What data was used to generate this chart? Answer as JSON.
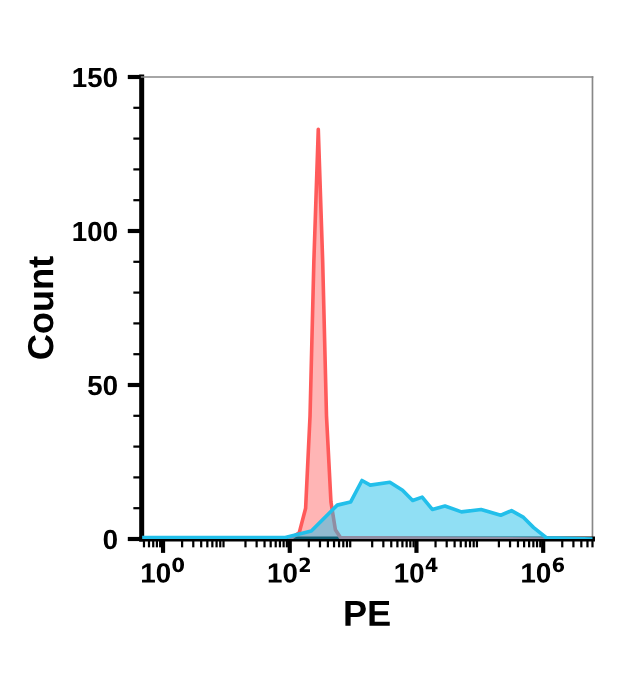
{
  "chart_data": {
    "type": "area",
    "xlabel": "PE",
    "ylabel": "Count",
    "log": "x",
    "xlim": [
      0.46,
      6000000
    ],
    "xticks": [
      {
        "value": 1,
        "label": "10$^{0}$"
      },
      {
        "value": 100,
        "label": "10$^{2}$"
      },
      {
        "value": 10000,
        "label": "10$^{4}$"
      },
      {
        "value": 1000000,
        "label": "10$^{6}$"
      }
    ],
    "ylim": [
      0,
      150
    ],
    "yticks": [
      0,
      50,
      100,
      150
    ],
    "grid": false,
    "series": [
      {
        "color": "#ff5a5a",
        "x": [
          100,
          141,
          178,
          209,
          240,
          282,
          331,
          380,
          447,
          525,
          631,
          1000000
        ],
        "values": [
          0,
          2,
          10,
          40,
          90,
          133,
          90,
          40,
          12,
          3,
          0.5,
          0
        ]
      },
      {
        "color": "#22bfea",
        "x": [
          0.5,
          85,
          219,
          562,
          912,
          1380,
          1862,
          3802,
          6026,
          8710,
          12300,
          17780,
          28180,
          51290,
          104700,
          213800,
          316200,
          489800,
          707900,
          1122000,
          6000000
        ],
        "values": [
          0.5,
          0.5,
          2.6,
          11,
          12,
          19,
          17.5,
          18.4,
          15.8,
          12.5,
          13.6,
          9.6,
          10.7,
          8.8,
          9.6,
          7.7,
          9.2,
          7,
          3.7,
          0.4,
          0
        ]
      }
    ]
  }
}
